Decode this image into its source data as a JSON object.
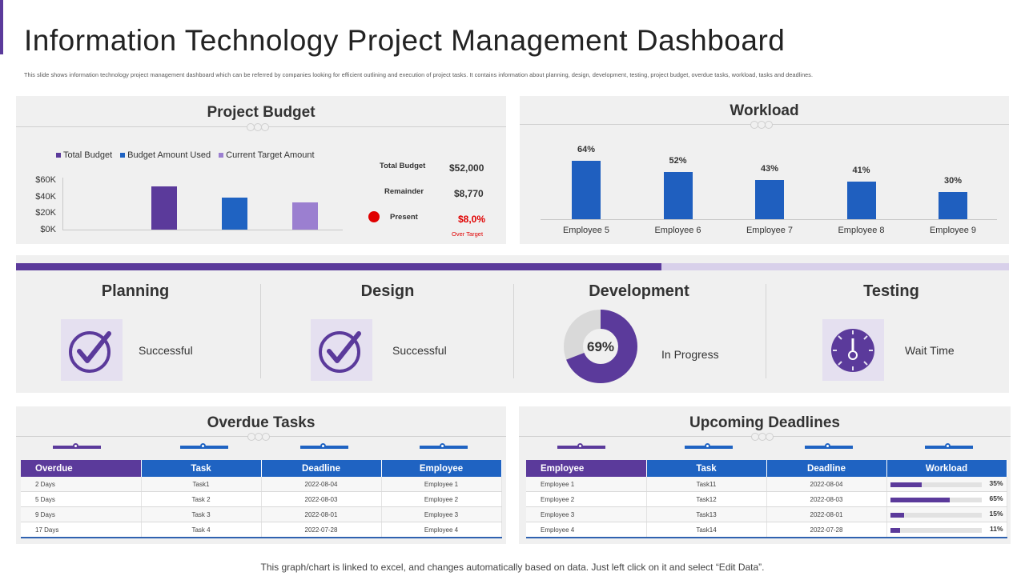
{
  "header": {
    "title": "Information Technology Project Management Dashboard",
    "subtitle": "This slide shows information technology project management dashboard which can be referred by companies looking for efficient outlining and execution of project tasks. It contains information about planning, design, development, testing, project budget, overdue tasks, workload, tasks and deadlines."
  },
  "colors": {
    "purple": "#5b3a9b",
    "blue": "#1f63c2",
    "light_purple": "#9b7fd0",
    "red": "#e00000"
  },
  "budget": {
    "title": "Project Budget",
    "stats": {
      "total_budget_label": "Total Budget",
      "total_budget_value": "$52,000",
      "remainder_label": "Remainder",
      "remainder_value": "$8,770",
      "present_label": "Present",
      "present_value": "$8,0%",
      "over_target": "Over Target"
    }
  },
  "workload": {
    "title": "Workload"
  },
  "chart_data": [
    {
      "type": "bar",
      "title": "Project Budget",
      "categories": [
        "Total Budget",
        "Budget Amount Used",
        "Current Target Amount"
      ],
      "values": [
        52000,
        39000,
        33000
      ],
      "legend": [
        "Total Budget",
        "Budget Amount Used",
        "Current Target Amount"
      ],
      "legend_position": "top",
      "yticks": [
        "$60K",
        "$40K",
        "$20K",
        "$0K"
      ],
      "ylim": [
        0,
        60000
      ]
    },
    {
      "type": "bar",
      "title": "Workload",
      "categories": [
        "Employee 5",
        "Employee 6",
        "Employee 7",
        "Employee 8",
        "Employee 9"
      ],
      "values": [
        64,
        52,
        43,
        41,
        30
      ],
      "labels": [
        "64%",
        "52%",
        "43%",
        "41%",
        "30%"
      ],
      "ylim": [
        0,
        70
      ]
    }
  ],
  "phases": {
    "progress": 0.65,
    "items": [
      {
        "title": "Planning",
        "status": "Successful",
        "icon": "check-circle-icon"
      },
      {
        "title": "Design",
        "status": "Successful",
        "icon": "check-circle-icon"
      },
      {
        "title": "Development",
        "status": "In Progress",
        "icon": "donut-chart",
        "percent_label": "69%",
        "percent": 69
      },
      {
        "title": "Testing",
        "status": "Wait Time",
        "icon": "stopwatch-icon"
      }
    ]
  },
  "overdue": {
    "title": "Overdue Tasks",
    "columns": [
      "Overdue",
      "Task",
      "Deadline",
      "Employee"
    ],
    "rows": [
      [
        "2 Days",
        "Task1",
        "2022-08-04",
        "Employee 1"
      ],
      [
        "5 Days",
        "Task 2",
        "2022-08-03",
        "Employee 2"
      ],
      [
        "9 Days",
        "Task 3",
        "2022-08-01",
        "Employee 3"
      ],
      [
        "17 Days",
        "Task 4",
        "2022-07-28",
        "Employee 4"
      ]
    ]
  },
  "deadlines": {
    "title": "Upcoming Deadlines",
    "columns": [
      "Employee",
      "Task",
      "Deadline",
      "Workload"
    ],
    "rows": [
      {
        "employee": "Employee 1",
        "task": "Task11",
        "deadline": "2022-08-04",
        "workload": 35,
        "workload_label": "35%"
      },
      {
        "employee": "Employee 2",
        "task": "Task12",
        "deadline": "2022-08-03",
        "workload": 65,
        "workload_label": "65%"
      },
      {
        "employee": "Employee 3",
        "task": "Task13",
        "deadline": "2022-08-01",
        "workload": 15,
        "workload_label": "15%"
      },
      {
        "employee": "Employee 4",
        "task": "Task14",
        "deadline": "2022-07-28",
        "workload": 11,
        "workload_label": "11%"
      }
    ]
  },
  "footer": "This graph/chart is linked to excel, and changes automatically based on data. Just left click on it and select “Edit Data”."
}
